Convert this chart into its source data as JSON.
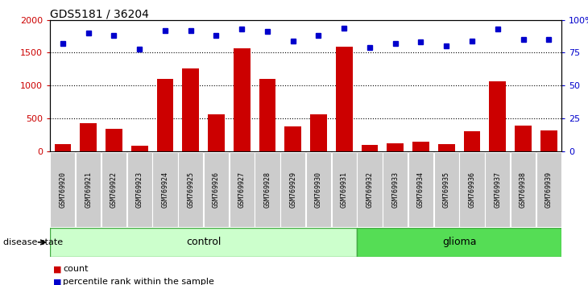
{
  "title": "GDS5181 / 36204",
  "samples": [
    "GSM769920",
    "GSM769921",
    "GSM769922",
    "GSM769923",
    "GSM769924",
    "GSM769925",
    "GSM769926",
    "GSM769927",
    "GSM769928",
    "GSM769929",
    "GSM769930",
    "GSM769931",
    "GSM769932",
    "GSM769933",
    "GSM769934",
    "GSM769935",
    "GSM769936",
    "GSM769937",
    "GSM769938",
    "GSM769939"
  ],
  "counts": [
    110,
    420,
    340,
    80,
    1100,
    1260,
    560,
    1570,
    1100,
    380,
    560,
    1590,
    90,
    120,
    140,
    110,
    300,
    1060,
    390,
    320
  ],
  "percentiles": [
    82,
    90,
    88,
    78,
    92,
    92,
    88,
    93,
    91,
    84,
    88,
    94,
    79,
    82,
    83,
    80,
    84,
    93,
    85,
    85
  ],
  "control_count": 12,
  "glioma_count": 8,
  "bar_color": "#cc0000",
  "dot_color": "#0000cc",
  "control_color": "#ccffcc",
  "glioma_color": "#55dd55",
  "sample_bg_color": "#cccccc",
  "ylim_left": [
    0,
    2000
  ],
  "ylim_right": [
    0,
    100
  ],
  "yticks_left": [
    0,
    500,
    1000,
    1500,
    2000
  ],
  "ytick_labels_left": [
    "0",
    "500",
    "1000",
    "1500",
    "2000"
  ],
  "yticks_right": [
    0,
    25,
    50,
    75,
    100
  ],
  "ytick_labels_right": [
    "0",
    "25",
    "50",
    "75",
    "100%"
  ]
}
